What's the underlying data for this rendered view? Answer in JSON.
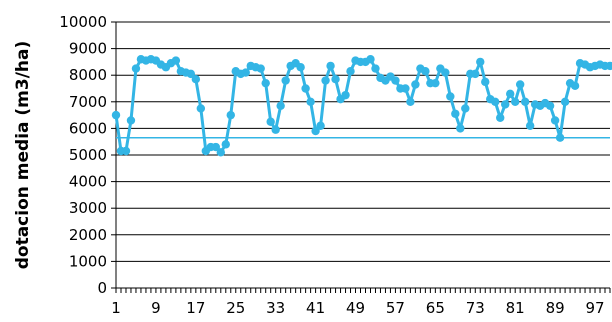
{
  "chart_data": {
    "type": "line",
    "title": "",
    "xlabel": "",
    "ylabel": "dotacion media (m3/ha)",
    "ylim": [
      0,
      10000
    ],
    "xlim": [
      1,
      100
    ],
    "yticks": [
      0,
      1000,
      2000,
      3000,
      4000,
      5000,
      6000,
      7000,
      8000,
      9000,
      10000
    ],
    "xtick_labels": [
      "1",
      "9",
      "17",
      "25",
      "33",
      "41",
      "49",
      "57",
      "65",
      "73",
      "81",
      "89",
      "97"
    ],
    "grid": "horizontal",
    "legend": "none",
    "colors": {
      "series": "#33b5e5",
      "reference": "#33b5e5",
      "grid": "#000000"
    },
    "reference_line": {
      "y": 5650
    },
    "series": [
      {
        "x": [
          1,
          2,
          3,
          4,
          5,
          6,
          7,
          8,
          9,
          10,
          11,
          12,
          13,
          14,
          15,
          16,
          17,
          18,
          19,
          20,
          21,
          22,
          23,
          24,
          25,
          26,
          27,
          28,
          29,
          30,
          31,
          32,
          33,
          34,
          35,
          36,
          37,
          38,
          39,
          40,
          41,
          42,
          43,
          44,
          45,
          46,
          47,
          48,
          49,
          50,
          51,
          52,
          53,
          54,
          55,
          56,
          57,
          58,
          59,
          60,
          61,
          62,
          63,
          64,
          65,
          66,
          67,
          68,
          69,
          70,
          71,
          72,
          73,
          74,
          75,
          76,
          77,
          78,
          79,
          80,
          81,
          82,
          83,
          84,
          85,
          86,
          87,
          88,
          89,
          90,
          91,
          92,
          93,
          94,
          95,
          96,
          97,
          98,
          99,
          100
        ],
        "values": [
          6500,
          5150,
          5150,
          6300,
          8250,
          8600,
          8550,
          8600,
          8550,
          8400,
          8300,
          8450,
          8550,
          8150,
          8100,
          8050,
          7850,
          6750,
          5150,
          5300,
          5300,
          5100,
          5400,
          6500,
          8150,
          8050,
          8100,
          8350,
          8300,
          8250,
          7700,
          6250,
          5950,
          6850,
          7800,
          8350,
          8450,
          8300,
          7500,
          7000,
          5900,
          6100,
          7800,
          8350,
          7850,
          7100,
          7250,
          8150,
          8550,
          8500,
          8500,
          8600,
          8250,
          7900,
          7800,
          7950,
          7800,
          7500,
          7500,
          7000,
          7650,
          8250,
          8150,
          7700,
          7700,
          8250,
          8100,
          7200,
          6550,
          6000,
          6750,
          8050,
          8050,
          8500,
          7750,
          7100,
          7000,
          6400,
          6900,
          7300,
          7000,
          7650,
          7000,
          6100,
          6900,
          6850,
          6950,
          6850,
          6300,
          5650,
          7000,
          7700,
          7600,
          8450,
          8400,
          8300,
          8350,
          8400,
          8350,
          8350
        ]
      }
    ]
  }
}
